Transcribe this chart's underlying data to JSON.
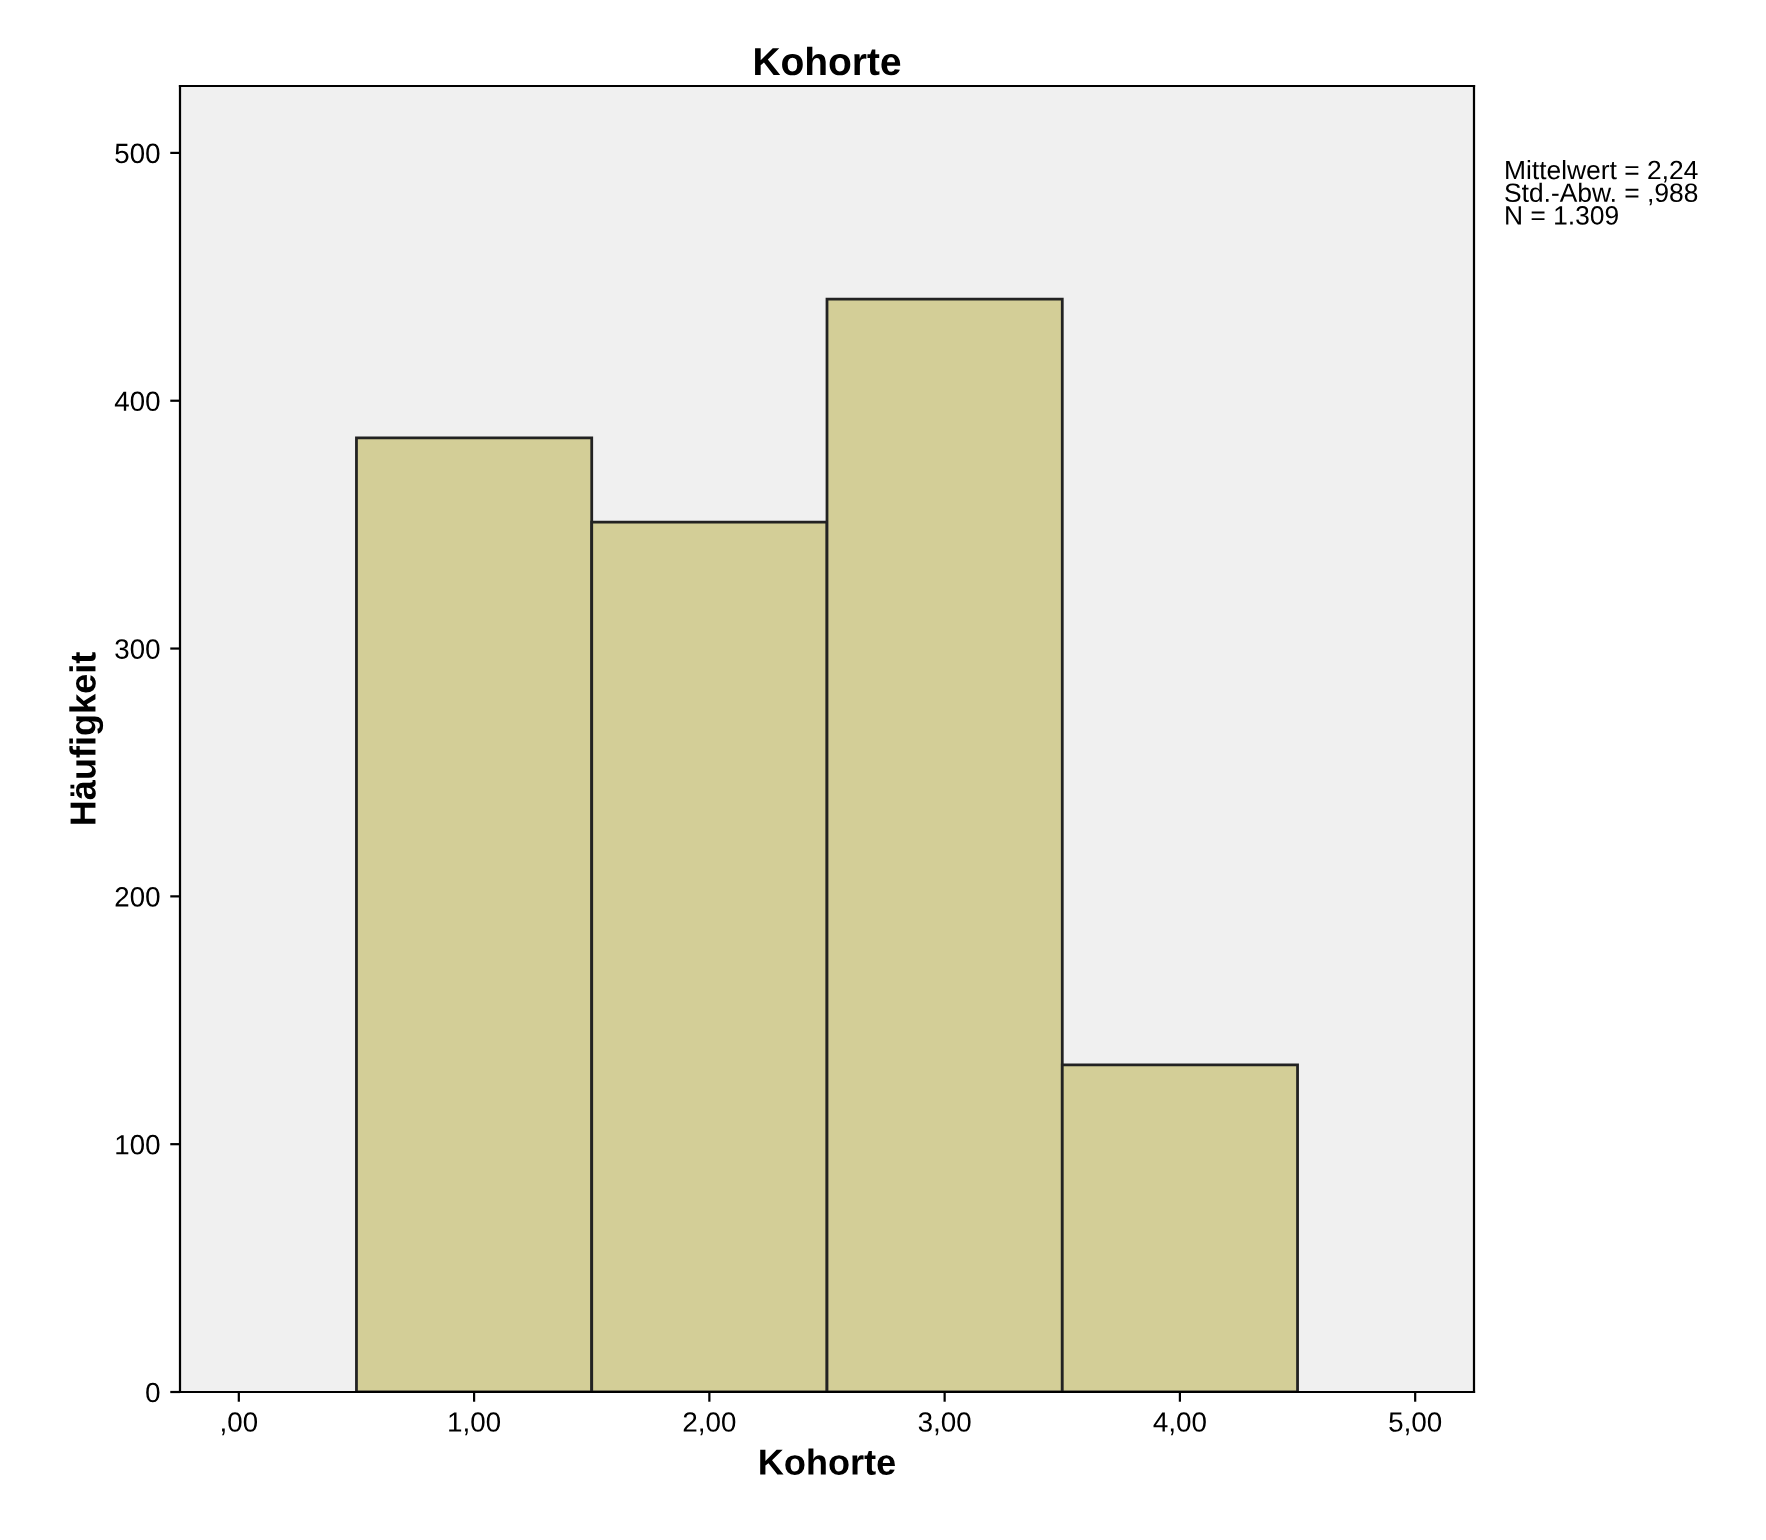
{
  "chart_data": {
    "type": "histogram",
    "title": "Kohorte",
    "xlabel": "Kohorte",
    "ylabel": "Häufigkeit",
    "bins": [
      0.5,
      1.5,
      2.5,
      3.5,
      4.5
    ],
    "values": [
      385,
      351,
      441,
      132
    ],
    "color": "#d3ce97",
    "xlim": [
      -0.25,
      5.25
    ],
    "xticks": [
      {
        "value": 0,
        "label": ",00"
      },
      {
        "value": 1,
        "label": "1,00"
      },
      {
        "value": 2,
        "label": "2,00"
      },
      {
        "value": 3,
        "label": "3,00"
      },
      {
        "value": 4,
        "label": "4,00"
      },
      {
        "value": 5,
        "label": "5,00"
      }
    ],
    "ylim": [
      0,
      527
    ],
    "yticks": [
      0,
      100,
      200,
      300,
      400,
      500
    ],
    "grid": false,
    "annotations": [
      "Mittelwert = 2,24\nStd.-Abw. = ,988\nN = 1.309"
    ]
  }
}
